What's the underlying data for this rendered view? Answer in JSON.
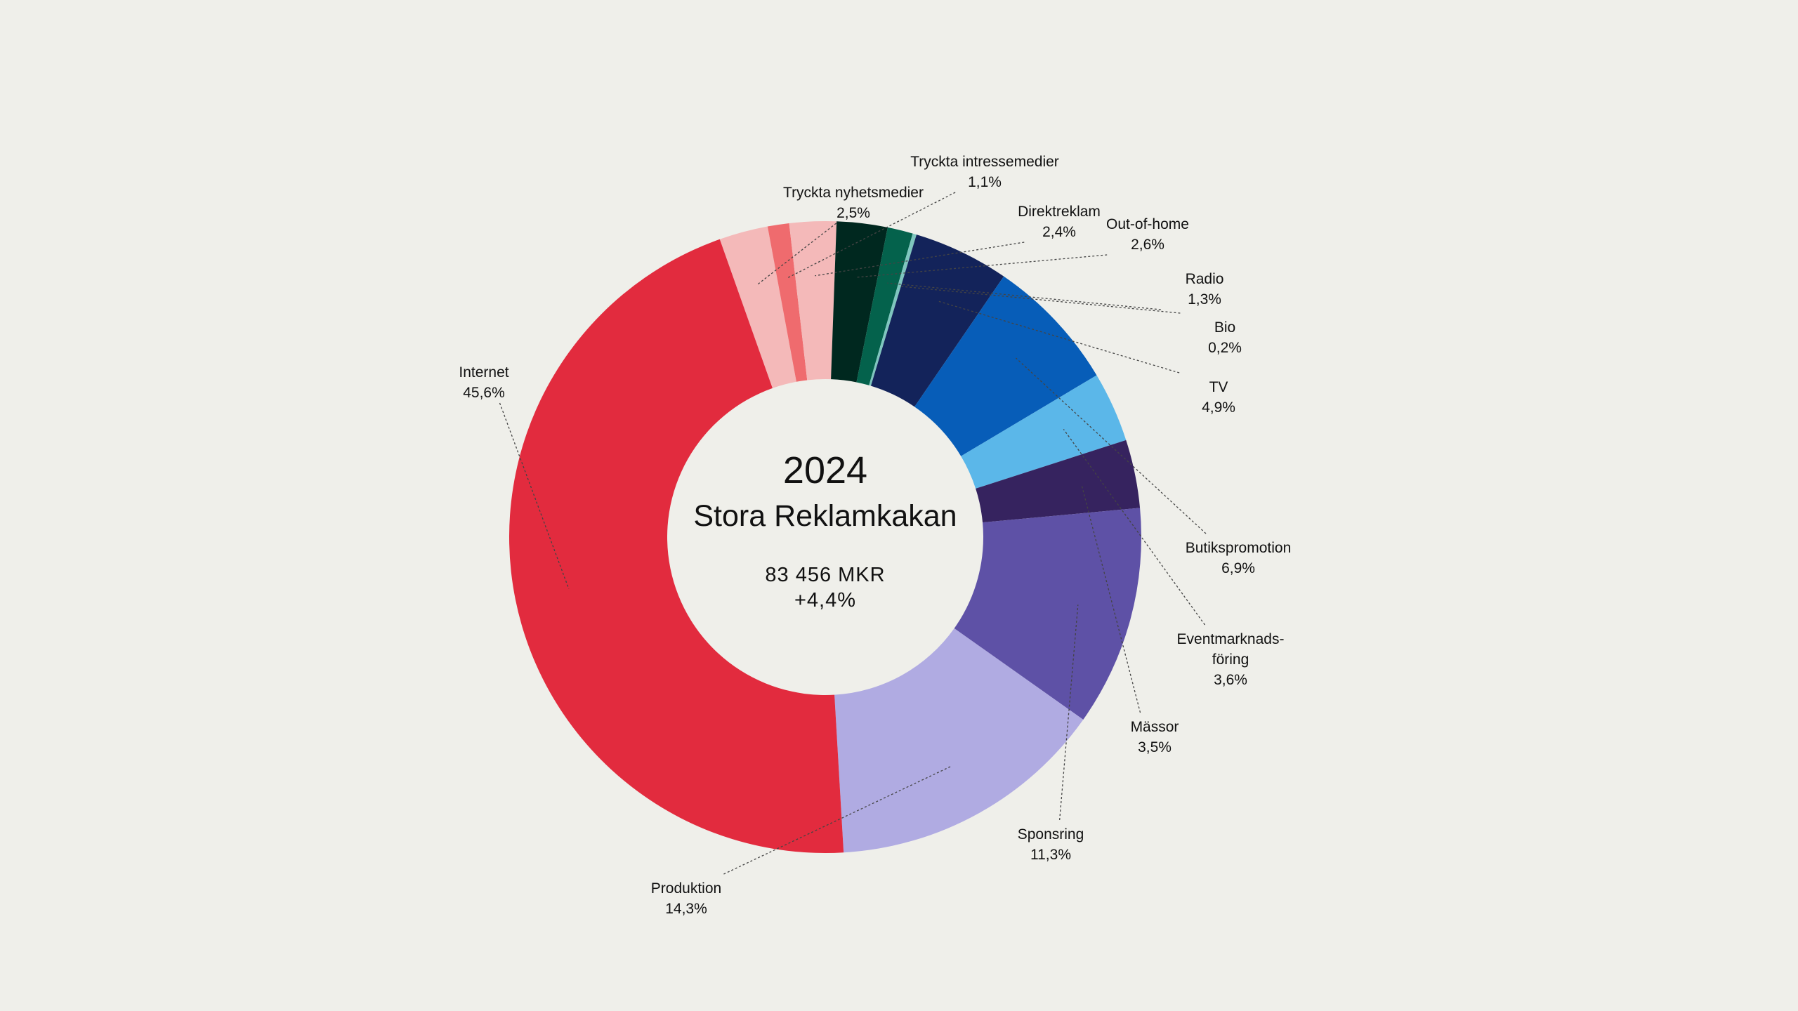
{
  "chart_data": {
    "type": "pie",
    "center": {
      "year": "2024",
      "title": "Stora Reklamkakan",
      "total": "83 456 MKR",
      "change": "+4,4%"
    },
    "slices": [
      {
        "label": "Tryckta nyhetsmedier",
        "value_label": "2,5%",
        "value": 2.5,
        "color": "#f4b9b9"
      },
      {
        "label": "Tryckta intressemedier",
        "value_label": "1,1%",
        "value": 1.1,
        "color": "#ef6b6e"
      },
      {
        "label": "Direktreklam",
        "value_label": "2,4%",
        "value": 2.4,
        "color": "#f4b9b9"
      },
      {
        "label": "Out-of-home",
        "value_label": "2,6%",
        "value": 2.6,
        "color": "#00281f"
      },
      {
        "label": "Radio",
        "value_label": "1,3%",
        "value": 1.3,
        "color": "#04624c"
      },
      {
        "label": "Bio",
        "value_label": "0,2%",
        "value": 0.2,
        "color": "#7fc6bf"
      },
      {
        "label": "TV",
        "value_label": "4,9%",
        "value": 4.9,
        "color": "#13235a"
      },
      {
        "label": "Butikspromotion",
        "value_label": "6,9%",
        "value": 6.9,
        "color": "#075db8"
      },
      {
        "label": "Eventmarknads-\nföring",
        "value_label": "3,6%",
        "value": 3.6,
        "color": "#5bb7e9"
      },
      {
        "label": "Mässor",
        "value_label": "3,5%",
        "value": 3.5,
        "color": "#36235f"
      },
      {
        "label": "Sponsring",
        "value_label": "11,3%",
        "value": 11.3,
        "color": "#5e51a6"
      },
      {
        "label": "Produktion",
        "value_label": "14,3%",
        "value": 14.3,
        "color": "#b0abe2"
      },
      {
        "label": "Internet",
        "value_label": "45,6%",
        "value": 45.6,
        "color": "#e22b3e"
      }
    ]
  }
}
